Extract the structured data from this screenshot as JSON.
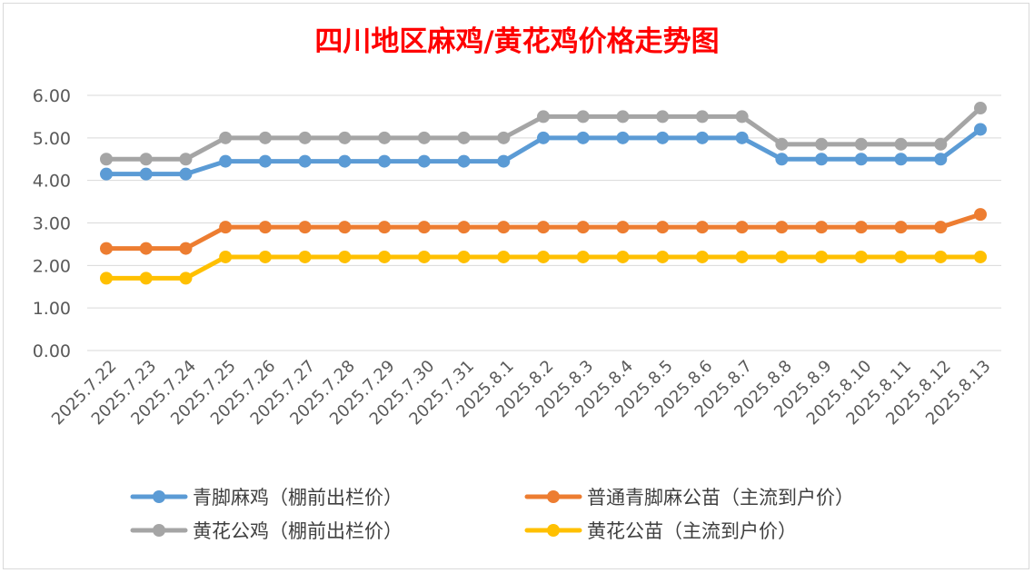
{
  "chart_data": {
    "type": "line",
    "title": "四川地区麻鸡/黄花鸡价格走势图",
    "xlabel": "",
    "ylabel": "",
    "ylim": [
      0,
      6
    ],
    "yticks": [
      "0.00",
      "1.00",
      "2.00",
      "3.00",
      "4.00",
      "5.00",
      "6.00"
    ],
    "grid": true,
    "legend_position": "bottom",
    "categories": [
      "2025.7.22",
      "2025.7.23",
      "2025.7.24",
      "2025.7.25",
      "2025.7.26",
      "2025.7.27",
      "2025.7.28",
      "2025.7.29",
      "2025.7.30",
      "2025.7.31",
      "2025.8.1",
      "2025.8.2",
      "2025.8.3",
      "2025.8.4",
      "2025.8.5",
      "2025.8.6",
      "2025.8.7",
      "2025.8.8",
      "2025.8.9",
      "2025.8.10",
      "2025.8.11",
      "2025.8.12",
      "2025.8.13"
    ],
    "series": [
      {
        "name": "青脚麻鸡（棚前出栏价）",
        "color": "#5b9bd5",
        "values": [
          4.15,
          4.15,
          4.15,
          4.45,
          4.45,
          4.45,
          4.45,
          4.45,
          4.45,
          4.45,
          4.45,
          5.0,
          5.0,
          5.0,
          5.0,
          5.0,
          5.0,
          4.5,
          4.5,
          4.5,
          4.5,
          4.5,
          5.2
        ]
      },
      {
        "name": "普通青脚麻公苗（主流到户价）",
        "color": "#ed7d31",
        "values": [
          2.4,
          2.4,
          2.4,
          2.9,
          2.9,
          2.9,
          2.9,
          2.9,
          2.9,
          2.9,
          2.9,
          2.9,
          2.9,
          2.9,
          2.9,
          2.9,
          2.9,
          2.9,
          2.9,
          2.9,
          2.9,
          2.9,
          3.2
        ]
      },
      {
        "name": "黄花公鸡（棚前出栏价）",
        "color": "#a5a5a5",
        "values": [
          4.5,
          4.5,
          4.5,
          5.0,
          5.0,
          5.0,
          5.0,
          5.0,
          5.0,
          5.0,
          5.0,
          5.5,
          5.5,
          5.5,
          5.5,
          5.5,
          5.5,
          4.85,
          4.85,
          4.85,
          4.85,
          4.85,
          5.7
        ]
      },
      {
        "name": "黄花公苗（主流到户价）",
        "color": "#ffc000",
        "values": [
          1.7,
          1.7,
          1.7,
          2.2,
          2.2,
          2.2,
          2.2,
          2.2,
          2.2,
          2.2,
          2.2,
          2.2,
          2.2,
          2.2,
          2.2,
          2.2,
          2.2,
          2.2,
          2.2,
          2.2,
          2.2,
          2.2,
          2.2
        ]
      }
    ]
  }
}
